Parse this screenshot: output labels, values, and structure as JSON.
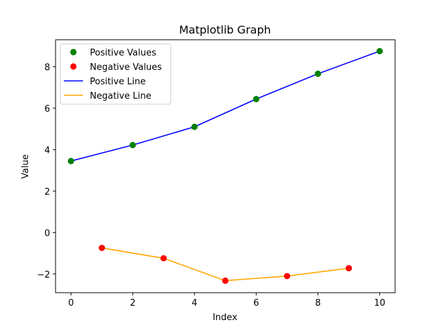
{
  "chart_data": {
    "type": "line",
    "title": "Matplotlib Graph",
    "xlabel": "Index",
    "ylabel": "Value",
    "xlim": [
      -0.5,
      10.5
    ],
    "ylim": [
      -2.9,
      9.3
    ],
    "xticks": [
      0,
      2,
      4,
      6,
      8,
      10
    ],
    "yticks": [
      -2,
      0,
      2,
      4,
      6,
      8
    ],
    "grid": false,
    "legend_position": "top-left",
    "series": [
      {
        "name": "Positive Values",
        "kind": "scatter",
        "color": "#008000",
        "x": [
          0,
          2,
          4,
          6,
          8,
          10
        ],
        "y": [
          3.45,
          4.22,
          5.1,
          6.44,
          7.66,
          8.75
        ]
      },
      {
        "name": "Negative Values",
        "kind": "scatter",
        "color": "#ff0000",
        "x": [
          1,
          3,
          5,
          7,
          9
        ],
        "y": [
          -0.74,
          -1.24,
          -2.32,
          -2.1,
          -1.72
        ]
      },
      {
        "name": "Positive Line",
        "kind": "line",
        "color": "#0000ff",
        "x": [
          0,
          2,
          4,
          6,
          8,
          10
        ],
        "y": [
          3.45,
          4.22,
          5.1,
          6.44,
          7.66,
          8.75
        ]
      },
      {
        "name": "Negative Line",
        "kind": "line",
        "color": "#ffa500",
        "x": [
          1,
          3,
          5,
          7,
          9
        ],
        "y": [
          -0.74,
          -1.24,
          -2.32,
          -2.1,
          -1.72
        ]
      }
    ]
  }
}
